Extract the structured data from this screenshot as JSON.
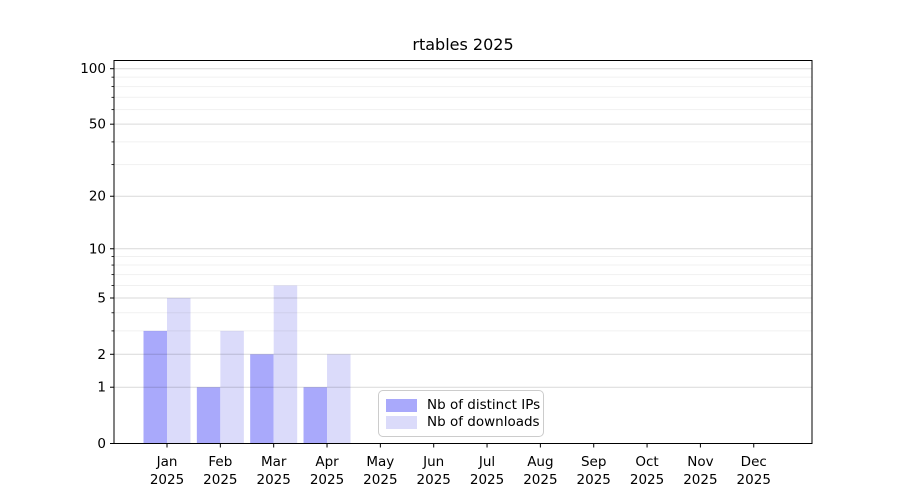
{
  "chart_data": {
    "type": "bar",
    "title": "rtables 2025",
    "categories": [
      "Jan",
      "Feb",
      "Mar",
      "Apr",
      "May",
      "Jun",
      "Jul",
      "Aug",
      "Sep",
      "Oct",
      "Nov",
      "Dec"
    ],
    "x_year_line": "2025",
    "series": [
      {
        "name": "Nb of distinct IPs",
        "color": "#a9a9fb",
        "values": [
          3,
          1,
          2,
          1,
          0,
          0,
          0,
          0,
          0,
          0,
          0,
          0
        ]
      },
      {
        "name": "Nb of downloads",
        "color": "#dbdbfa",
        "values": [
          5,
          3,
          6,
          2,
          0,
          0,
          0,
          0,
          0,
          0,
          0,
          0
        ]
      }
    ],
    "xlabel": "",
    "ylabel": "",
    "yscale": "log1p",
    "ylim": [
      0,
      110
    ],
    "yticks": [
      0,
      1,
      2,
      5,
      10,
      20,
      50,
      100
    ],
    "minor_yticks": [
      3,
      4,
      6,
      7,
      8,
      9,
      30,
      40,
      60,
      70,
      80,
      90
    ],
    "grid": "on",
    "legend_position": "lower-center-inside",
    "colors": {
      "axis": "#000000",
      "major_grid": "rgba(0,0,0,0.15)",
      "minor_grid": "rgba(0,0,0,0.06)"
    }
  }
}
